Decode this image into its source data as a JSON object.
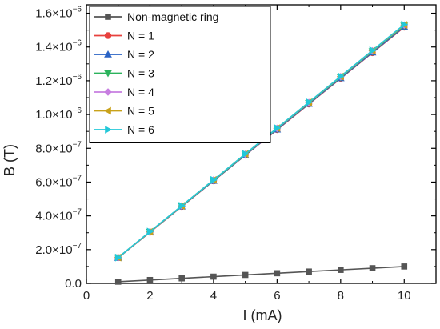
{
  "chart_data": {
    "type": "line",
    "xlabel": "I (mA)",
    "ylabel": "B (T)",
    "xlim": [
      0,
      11
    ],
    "ylim": [
      0,
      1.65e-06
    ],
    "x": [
      1,
      2,
      3,
      4,
      5,
      6,
      7,
      8,
      9,
      10
    ],
    "x_ticks": [
      0,
      2,
      4,
      6,
      8,
      10
    ],
    "x_tick_labels": [
      "0",
      "2",
      "4",
      "6",
      "8",
      "10"
    ],
    "y_ticks": [
      0,
      2e-07,
      4e-07,
      6e-07,
      8e-07,
      1e-06,
      1.2e-06,
      1.4e-06,
      1.6e-06
    ],
    "y_tick_labels": [
      {
        "mant": "0.0",
        "exp": ""
      },
      {
        "mant": "2.0×10",
        "exp": "−7"
      },
      {
        "mant": "4.0×10",
        "exp": "−7"
      },
      {
        "mant": "6.0×10",
        "exp": "−7"
      },
      {
        "mant": "8.0×10",
        "exp": "−7"
      },
      {
        "mant": "1.0×10",
        "exp": "−6"
      },
      {
        "mant": "1.2×10",
        "exp": "−6"
      },
      {
        "mant": "1.4×10",
        "exp": "−6"
      },
      {
        "mant": "1.6×10",
        "exp": "−6"
      }
    ],
    "grid": false,
    "legend_position": "top-left",
    "series": [
      {
        "name": "Non-magnetic ring",
        "color": "#555555",
        "marker": "square",
        "values": [
          1e-08,
          2e-08,
          3e-08,
          4e-08,
          5e-08,
          6e-08,
          7e-08,
          8e-08,
          9e-08,
          1e-07
        ]
      },
      {
        "name": "N = 1",
        "color": "#e8413e",
        "marker": "circle",
        "values": [
          1.52e-07,
          3.03e-07,
          4.55e-07,
          6.07e-07,
          7.59e-07,
          9.1e-07,
          1.062e-06,
          1.214e-06,
          1.366e-06,
          1.517e-06
        ]
      },
      {
        "name": "N = 2",
        "color": "#2a63c5",
        "marker": "triangle-up",
        "values": [
          1.52e-07,
          3.04e-07,
          4.56e-07,
          6.08e-07,
          7.6e-07,
          9.12e-07,
          1.064e-06,
          1.216e-06,
          1.368e-06,
          1.52e-06
        ]
      },
      {
        "name": "N = 3",
        "color": "#2bb35c",
        "marker": "triangle-down",
        "values": [
          1.53e-07,
          3.05e-07,
          4.58e-07,
          6.1e-07,
          7.63e-07,
          9.16e-07,
          1.068e-06,
          1.221e-06,
          1.374e-06,
          1.526e-06
        ]
      },
      {
        "name": "N = 4",
        "color": "#c77ee0",
        "marker": "diamond",
        "values": [
          1.53e-07,
          3.06e-07,
          4.59e-07,
          6.12e-07,
          7.65e-07,
          9.18e-07,
          1.071e-06,
          1.224e-06,
          1.377e-06,
          1.53e-06
        ]
      },
      {
        "name": "N = 5",
        "color": "#c9a21a",
        "marker": "triangle-left",
        "values": [
          1.53e-07,
          3.06e-07,
          4.59e-07,
          6.13e-07,
          7.66e-07,
          9.19e-07,
          1.072e-06,
          1.225e-06,
          1.378e-06,
          1.531e-06
        ]
      },
      {
        "name": "N = 6",
        "color": "#23c8d8",
        "marker": "triangle-right",
        "values": [
          1.53e-07,
          3.07e-07,
          4.6e-07,
          6.13e-07,
          7.67e-07,
          9.2e-07,
          1.073e-06,
          1.226e-06,
          1.38e-06,
          1.533e-06
        ]
      }
    ]
  }
}
